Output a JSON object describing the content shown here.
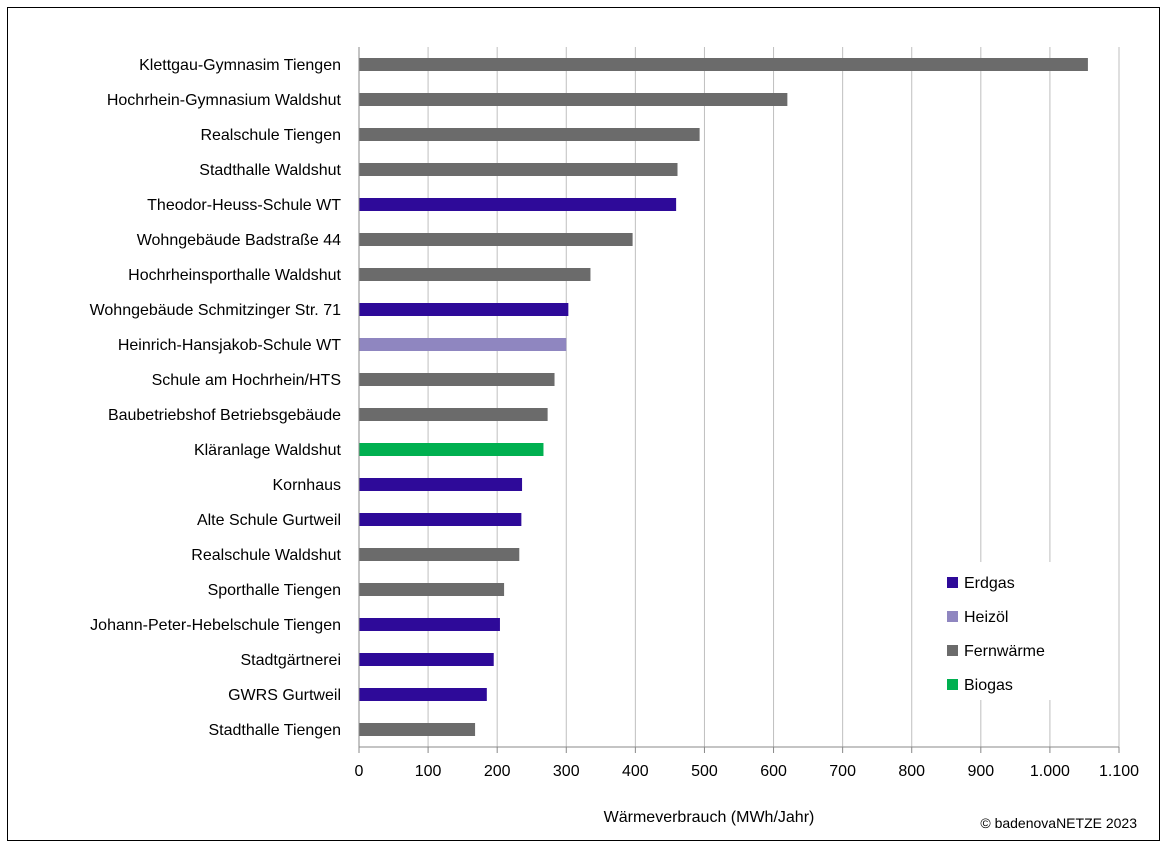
{
  "chart_data": {
    "type": "bar",
    "orientation": "horizontal",
    "xlabel": "Wärmeverbrauch (MWh/Jahr)",
    "xlim": [
      0,
      1100
    ],
    "x_ticks": [
      0,
      100,
      200,
      300,
      400,
      500,
      600,
      700,
      800,
      900,
      1000,
      1100
    ],
    "x_tick_labels": [
      "0",
      "100",
      "200",
      "300",
      "400",
      "500",
      "600",
      "700",
      "800",
      "900",
      "1.000",
      "1.100"
    ],
    "grid": "vertical",
    "legend_position": "bottom-right",
    "legend": [
      {
        "name": "Erdgas",
        "color": "#2e0a99"
      },
      {
        "name": "Heizöl",
        "color": "#8f86c0"
      },
      {
        "name": "Fernwärme",
        "color": "#6b6b6b"
      },
      {
        "name": "Biogas",
        "color": "#00b050"
      }
    ],
    "bars": [
      {
        "label": "Klettgau-Gymnasim Tiengen",
        "value": 1055,
        "carrier": "Fernwärme"
      },
      {
        "label": "Hochrhein-Gymnasium Waldshut",
        "value": 620,
        "carrier": "Fernwärme"
      },
      {
        "label": "Realschule Tiengen",
        "value": 493,
        "carrier": "Fernwärme"
      },
      {
        "label": "Stadthalle Waldshut",
        "value": 461,
        "carrier": "Fernwärme"
      },
      {
        "label": "Theodor-Heuss-Schule WT",
        "value": 459,
        "carrier": "Erdgas"
      },
      {
        "label": "Wohngebäude Badstraße 44",
        "value": 396,
        "carrier": "Fernwärme"
      },
      {
        "label": "Hochrheinsporthalle Waldshut",
        "value": 335,
        "carrier": "Fernwärme"
      },
      {
        "label": "Wohngebäude Schmitzinger Str. 71",
        "value": 303,
        "carrier": "Erdgas"
      },
      {
        "label": "Heinrich-Hansjakob-Schule WT",
        "value": 300,
        "carrier": "Heizöl"
      },
      {
        "label": "Schule am Hochrhein/HTS",
        "value": 283,
        "carrier": "Fernwärme"
      },
      {
        "label": "Baubetriebshof Betriebsgebäude",
        "value": 273,
        "carrier": "Fernwärme"
      },
      {
        "label": "Kläranlage Waldshut",
        "value": 267,
        "carrier": "Biogas"
      },
      {
        "label": "Kornhaus",
        "value": 236,
        "carrier": "Erdgas"
      },
      {
        "label": "Alte Schule Gurtweil",
        "value": 235,
        "carrier": "Erdgas"
      },
      {
        "label": "Realschule Waldshut",
        "value": 232,
        "carrier": "Fernwärme"
      },
      {
        "label": "Sporthalle Tiengen",
        "value": 210,
        "carrier": "Fernwärme"
      },
      {
        "label": "Johann-Peter-Hebelschule Tiengen",
        "value": 204,
        "carrier": "Erdgas"
      },
      {
        "label": "Stadtgärtnerei",
        "value": 195,
        "carrier": "Erdgas"
      },
      {
        "label": "GWRS Gurtweil",
        "value": 185,
        "carrier": "Erdgas"
      },
      {
        "label": "Stadthalle Tiengen",
        "value": 168,
        "carrier": "Fernwärme"
      }
    ]
  },
  "footer": {
    "copyright": "© badenovaNETZE 2023"
  }
}
